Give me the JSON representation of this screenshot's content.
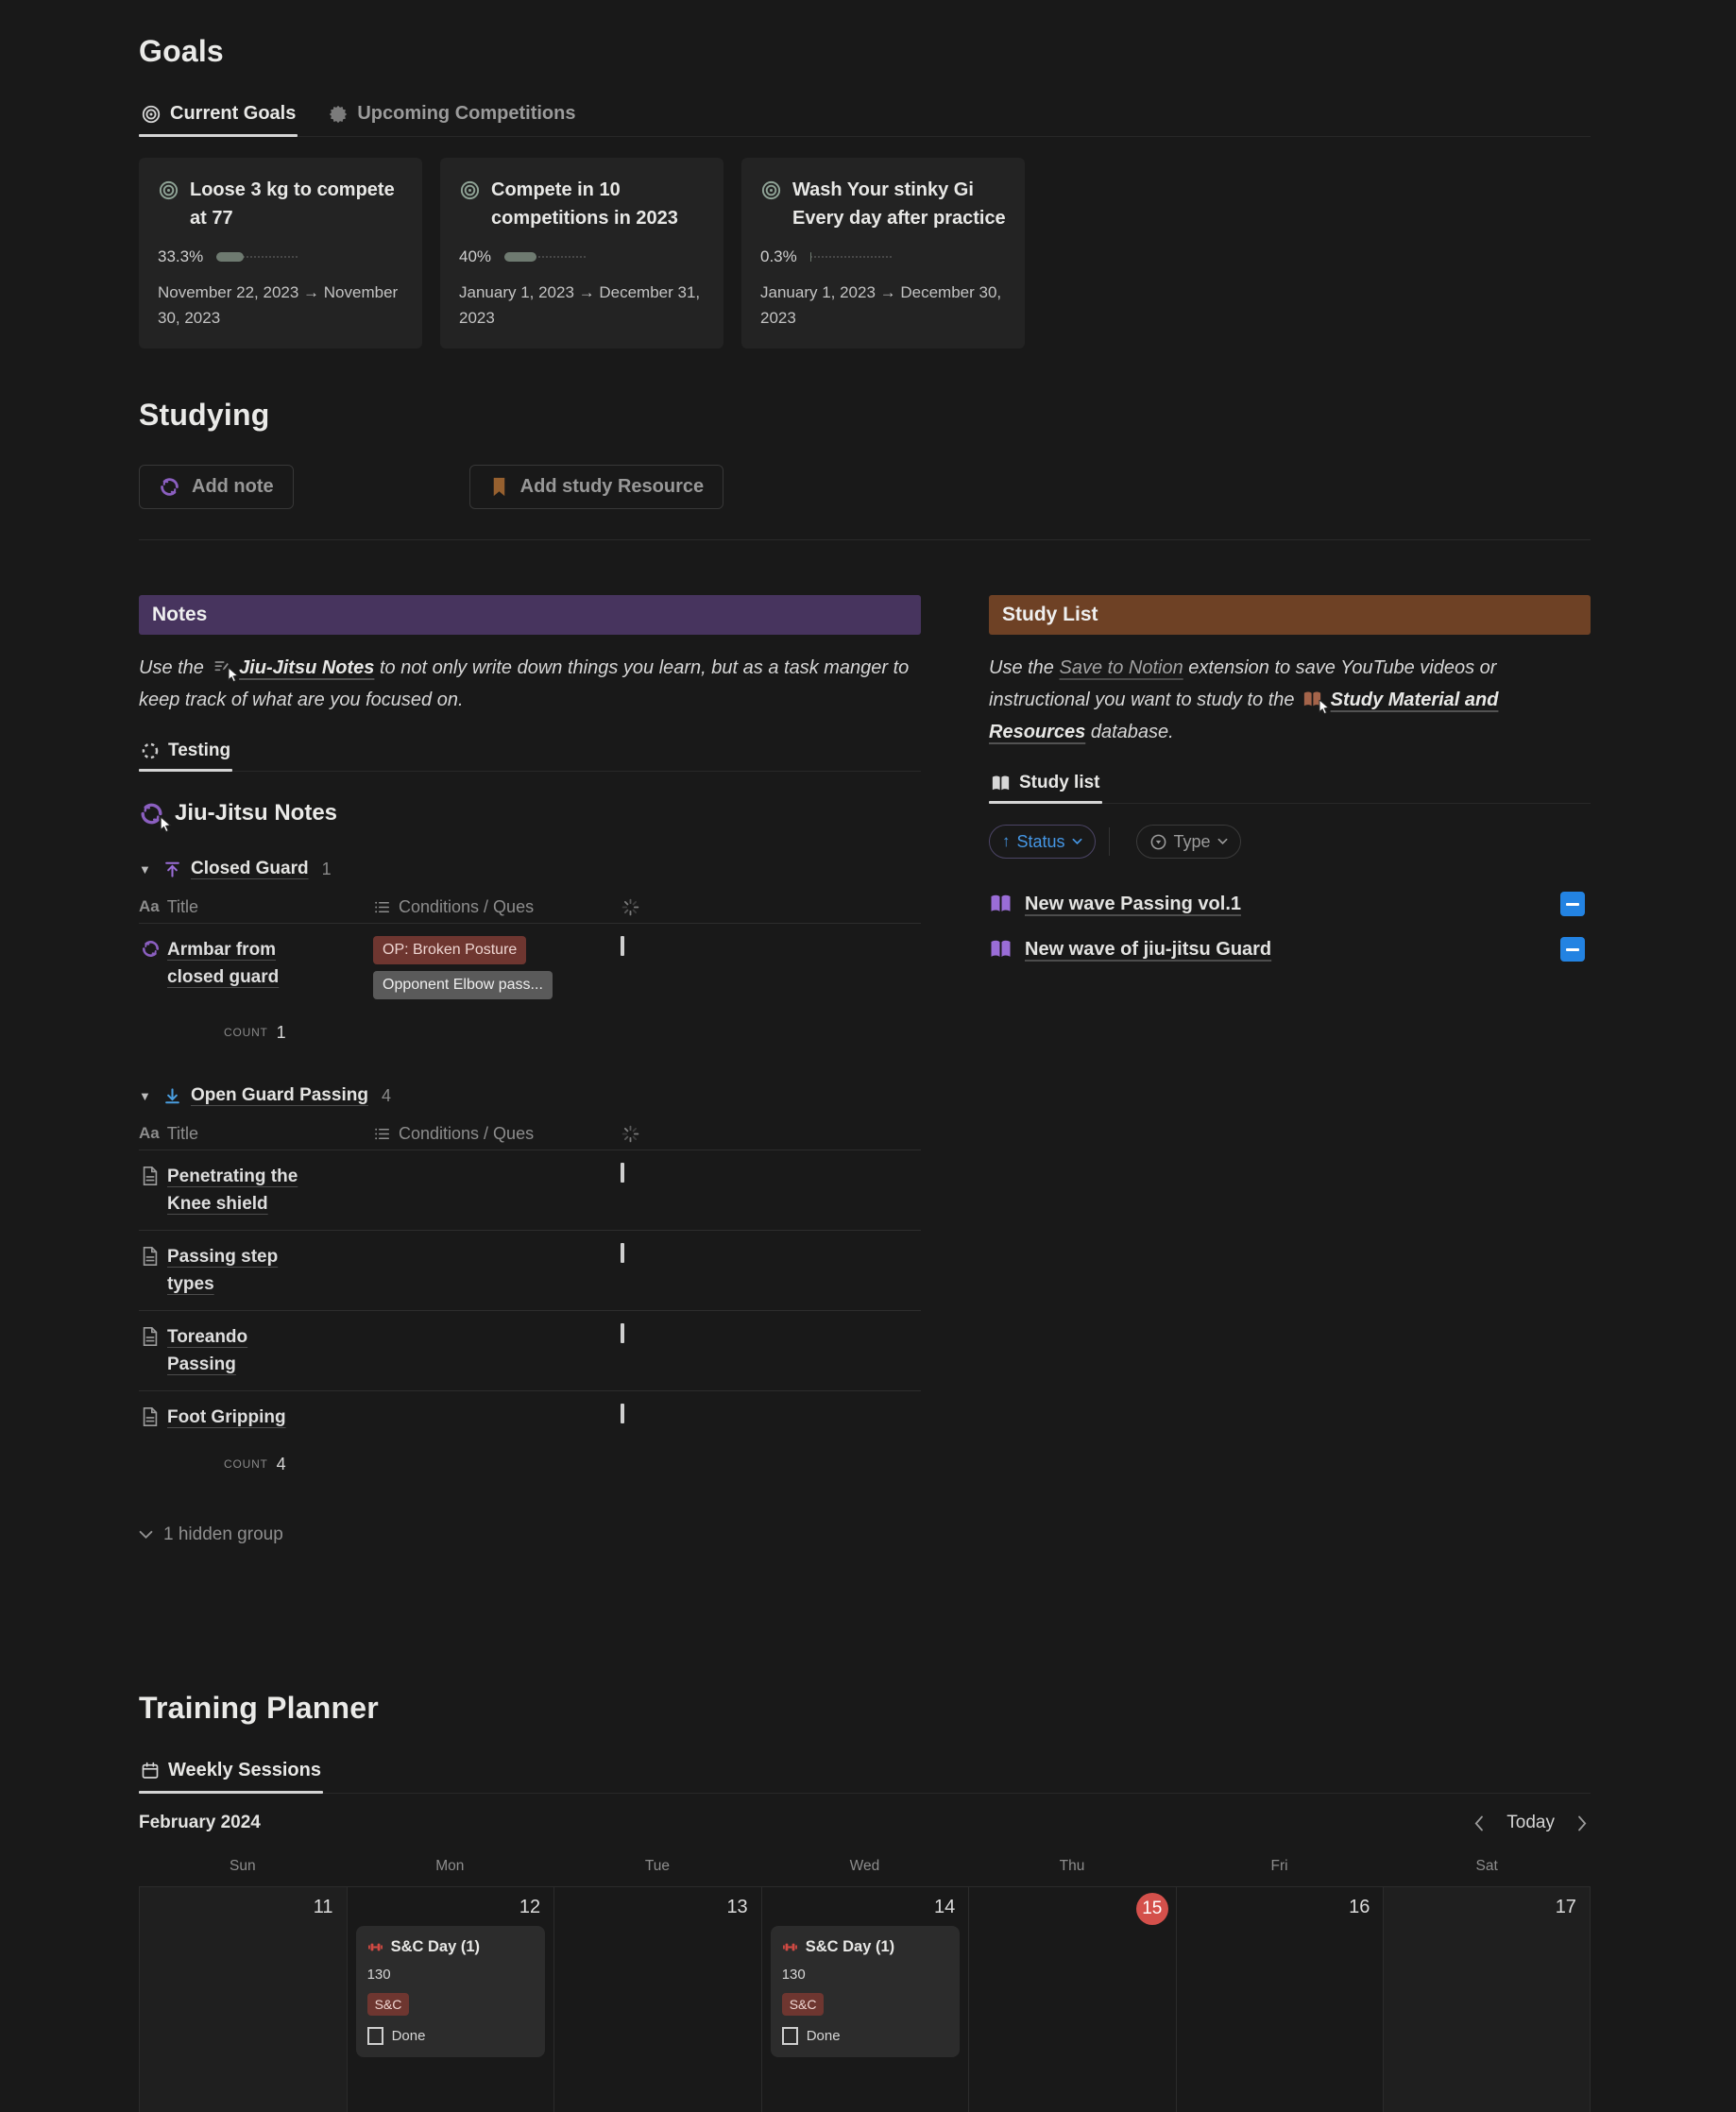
{
  "colors": {
    "page_bg": "#191919",
    "card_bg": "#232323",
    "notes_banner": "#47345e",
    "study_banner": "#6e4125",
    "accent_blue": "#2383e2",
    "today_red": "#d4504b",
    "tag_red_bg": "#6e3630",
    "tag_gray_bg": "#5a5a5a",
    "purple_icon": "#9a6dd7",
    "progress_fill": "#6e7a70"
  },
  "goals": {
    "title": "Goals",
    "tabs": [
      {
        "label": "Current Goals"
      },
      {
        "label": "Upcoming Competitions"
      }
    ],
    "cards": [
      {
        "title": "Loose 3 kg to compete at 77",
        "percent": "33.3%",
        "progress": 33.3,
        "dates": "November 22, 2023 → November 30, 2023"
      },
      {
        "title": "Compete in 10 competitions in 2023",
        "percent": "40%",
        "progress": 40,
        "dates": "January 1, 2023 → December 31, 2023"
      },
      {
        "title": "Wash Your stinky Gi Every day after practice",
        "percent": "0.3%",
        "progress": 0.3,
        "dates": "January 1, 2023 → December 30, 2023"
      }
    ]
  },
  "studying": {
    "title": "Studying",
    "add_note": "Add note",
    "add_resource": "Add study Resource"
  },
  "notes": {
    "banner": "Notes",
    "callout": {
      "prefix": "Use the",
      "link": "Jiu-Jitsu Notes",
      "suffix": "to not only write down things you learn, but as a task manger to keep track of what are you focused on."
    },
    "tab": "Testing",
    "db_title": "Jiu-Jitsu Notes",
    "header": {
      "title_prefix": "Aa",
      "title": "Title",
      "conditions": "Conditions / Ques"
    },
    "groups": [
      {
        "name": "Closed Guard",
        "badge": "1",
        "rows": [
          {
            "title": "Armbar from closed guard",
            "tags": [
              {
                "label": "OP: Broken Posture"
              },
              {
                "label": "Opponent Elbow pass..."
              }
            ]
          }
        ],
        "count_label": "COUNT",
        "count": "1"
      },
      {
        "name": "Open Guard Passing",
        "badge": "4",
        "rows": [
          {
            "title": "Penetrating the Knee shield"
          },
          {
            "title": "Passing step types"
          },
          {
            "title": "Toreando Passing"
          },
          {
            "title": "Foot Gripping"
          }
        ],
        "count_label": "COUNT",
        "count": "4"
      }
    ],
    "hidden": "1 hidden group"
  },
  "study_list": {
    "banner": "Study List",
    "callout": {
      "p1": "Use the",
      "link1": "Save to Notion",
      "p2": "extension to save YouTube videos or instructional you want to study to the",
      "link2": "Study Material and Resources",
      "p3": "database."
    },
    "tab": "Study list",
    "filters": {
      "status": "Status",
      "type": "Type"
    },
    "items": [
      {
        "title": "New wave Passing vol.1"
      },
      {
        "title": "New wave of jiu-jitsu Guard"
      }
    ]
  },
  "planner": {
    "title": "Training Planner",
    "tab": "Weekly Sessions",
    "month": "February 2024",
    "today": "Today",
    "days": [
      "Sun",
      "Mon",
      "Tue",
      "Wed",
      "Thu",
      "Fri",
      "Sat"
    ],
    "dates": [
      {
        "n": "11"
      },
      {
        "n": "12"
      },
      {
        "n": "13"
      },
      {
        "n": "14"
      },
      {
        "n": "15"
      },
      {
        "n": "16"
      },
      {
        "n": "17"
      }
    ],
    "event": {
      "title": "S&C Day (1)",
      "value": "130",
      "tag": "S&C",
      "done": "Done"
    }
  }
}
